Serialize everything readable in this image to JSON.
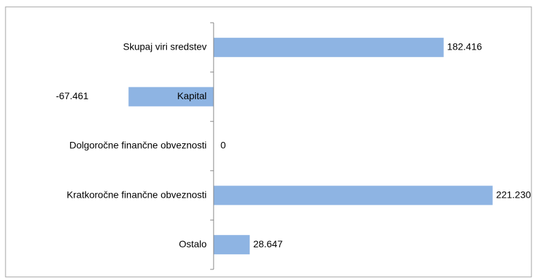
{
  "chart_data": {
    "type": "bar",
    "orientation": "horizontal",
    "categories": [
      "Skupaj viri sredstev",
      "Kapital",
      "Dolgoročne finančne obveznosti",
      "Kratkoročne finančne obveznosti",
      "Ostalo"
    ],
    "values": [
      182.416,
      -67.461,
      0,
      221.23,
      28.647
    ],
    "value_labels": [
      "182.416",
      "-67.461",
      "0",
      "221.230",
      "28.647"
    ],
    "color": "#8eb4e3",
    "xlim": [
      -165,
      252
    ]
  }
}
